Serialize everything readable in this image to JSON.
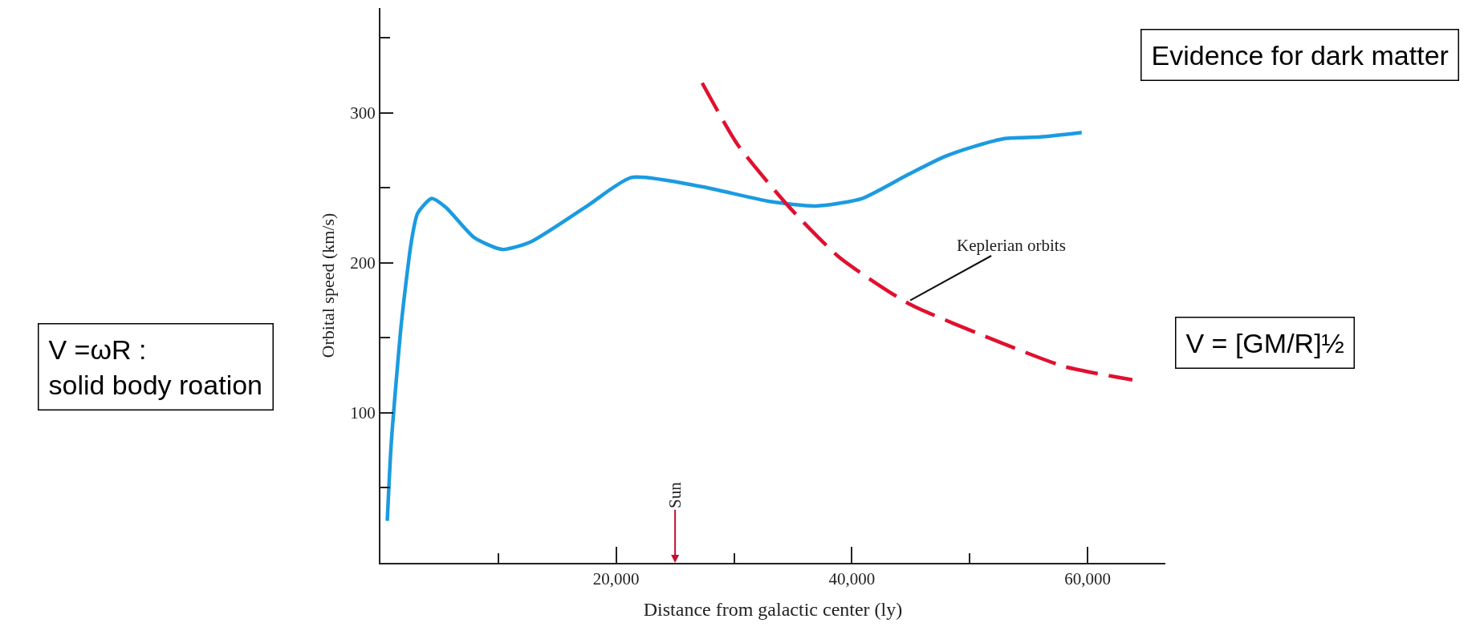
{
  "chart_data": {
    "type": "line",
    "xlabel": "Distance from galactic center (ly)",
    "ylabel": "Orbital speed (km/s)",
    "xlim": [
      0,
      66600
    ],
    "ylim": [
      0,
      370
    ],
    "xticks": [
      {
        "value": 10000,
        "label": null
      },
      {
        "value": 20000,
        "label": "20,000"
      },
      {
        "value": 30000,
        "label": null
      },
      {
        "value": 40000,
        "label": "40,000"
      },
      {
        "value": 50000,
        "label": null
      },
      {
        "value": 60000,
        "label": "60,000"
      }
    ],
    "yticks": [
      {
        "value": 50,
        "label": null
      },
      100,
      {
        "value": 150,
        "label": null
      },
      200,
      {
        "value": 250,
        "label": null
      },
      300,
      {
        "value": 350,
        "label": null
      }
    ],
    "grid": false,
    "series": [
      {
        "line_style": "solid",
        "color": "#1b9be0",
        "x": [
          580,
          920,
          1780,
          2620,
          3150,
          4350,
          5560,
          7940,
          10330,
          12740,
          17540,
          21300,
          27160,
          33030,
          36950,
          40870,
          44790,
          47890,
          50500,
          53000,
          56000,
          59500
        ],
        "values": [
          28,
          80,
          160,
          214,
          233,
          243,
          237,
          217,
          209,
          214,
          238,
          257,
          251,
          241,
          238,
          243,
          259,
          271,
          278,
          283,
          284,
          287
        ]
      },
      {
        "line_style": "dashed",
        "color": "#e0102f",
        "x": [
          27300,
          30300,
          34600,
          38900,
          44800,
          52600,
          58000,
          63800
        ],
        "values": [
          320,
          279,
          238,
          204,
          173,
          147,
          131,
          122
        ]
      }
    ],
    "annotations": [
      "Sun",
      {
        "text": "Keplerian orbits",
        "x": 44950,
        "y": 175
      },
      "Evidence for dark matter",
      "V = [GM/R]½",
      "V =ωR :\nsolid body roation"
    ]
  }
}
